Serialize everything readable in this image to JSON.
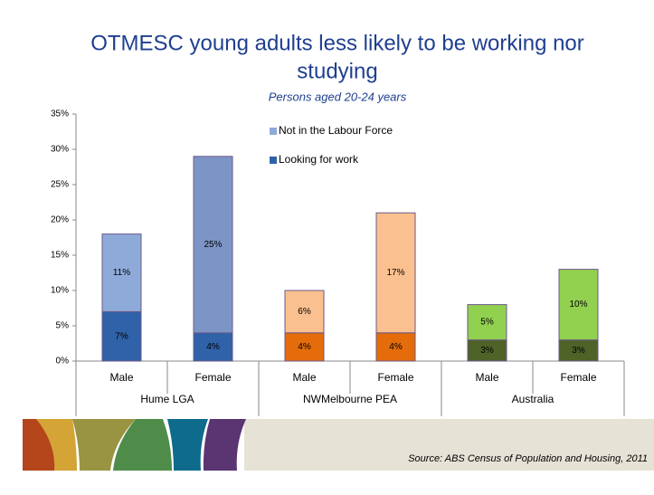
{
  "chart_data": {
    "type": "stacked-bar",
    "title_lines": [
      "OTMESC young adults less likely to be working nor",
      "studying"
    ],
    "subtitle": "Persons aged 20-24 years",
    "source": "Source: ABS Census of Population and Housing, 2011",
    "categories": [
      "Male",
      "Female",
      "Male",
      "Female",
      "Male",
      "Female"
    ],
    "group_labels": [
      "Hume LGA",
      "NWMelbourne PEA",
      "Australia"
    ],
    "series": [
      {
        "name": "Looking for work",
        "color": "#2f62a8",
        "colors": [
          "#2f62a8",
          "#2f62a8",
          "#e46c0a",
          "#e46c0a",
          "#4f6228",
          "#4f6228"
        ],
        "values": [
          7,
          4,
          4,
          4,
          3,
          3
        ],
        "value_labels": [
          "7%",
          "4%",
          "4%",
          "4%",
          "3%",
          "3%"
        ]
      },
      {
        "name": "Not in the Labour Force",
        "color": "#8eaad8",
        "colors": [
          "#8eaad8",
          "#7d95c6",
          "#fac08f",
          "#fac08f",
          "#92d050",
          "#92d050"
        ],
        "values": [
          11,
          25,
          6,
          17,
          5,
          10
        ],
        "value_labels": [
          "11%",
          "25%",
          "6%",
          "17%",
          "5%",
          "10%"
        ]
      }
    ],
    "ylim": [
      0,
      35
    ],
    "yticks": [
      {
        "value": 0,
        "label": "0%"
      },
      {
        "value": 5,
        "label": "5%"
      },
      {
        "value": 10,
        "label": "10%"
      },
      {
        "value": 15,
        "label": "15%"
      },
      {
        "value": 20,
        "label": "20%"
      },
      {
        "value": 25,
        "label": "25%"
      },
      {
        "value": 30,
        "label": "30%"
      },
      {
        "value": 35,
        "label": "35%"
      }
    ],
    "legend": "top-center"
  }
}
